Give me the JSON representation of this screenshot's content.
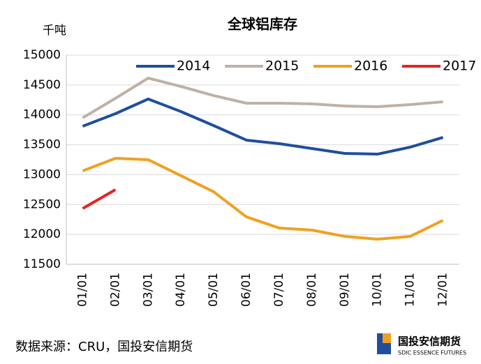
{
  "chart_data": {
    "type": "line",
    "title": "全球铝库存",
    "y_label": "千吨",
    "categories": [
      "01/01",
      "02/01",
      "03/01",
      "04/01",
      "05/01",
      "06/01",
      "07/01",
      "08/01",
      "09/01",
      "10/01",
      "11/01",
      "12/01"
    ],
    "series": [
      {
        "name": "2014",
        "color": "#1f4e9c",
        "values": [
          13810,
          14020,
          14265,
          14055,
          13820,
          13577,
          13518,
          13437,
          13355,
          13343,
          13460,
          13623
        ]
      },
      {
        "name": "2015",
        "color": "#bfb1a6",
        "values": [
          13950,
          14277,
          14615,
          14475,
          14323,
          14195,
          14195,
          14183,
          14148,
          14137,
          14172,
          14218
        ]
      },
      {
        "name": "2016",
        "color": "#f0a020",
        "values": [
          13063,
          13273,
          13250,
          12982,
          12713,
          12293,
          12107,
          12072,
          11967,
          11920,
          11967,
          12235
        ]
      },
      {
        "name": "2017",
        "color": "#e8231f",
        "values": [
          12433,
          12748,
          null,
          null,
          null,
          null,
          null,
          null,
          null,
          null,
          null,
          null
        ]
      }
    ],
    "ylim": [
      11500,
      15000
    ],
    "yticks": [
      11500,
      12000,
      12500,
      13000,
      13500,
      14000,
      14500,
      15000
    ],
    "grid": true,
    "legend": "top",
    "source": "数据来源：CRU，国投安信期货",
    "logo": {
      "name": "国投安信期货",
      "subtitle": "SDIC ESSENCE FUTURES"
    }
  }
}
